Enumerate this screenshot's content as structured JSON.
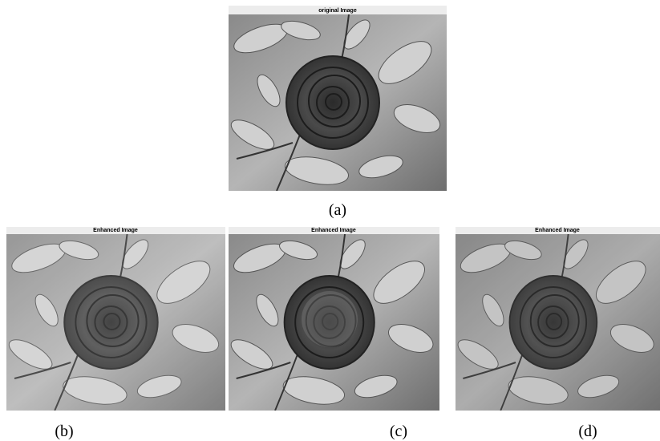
{
  "panels": [
    {
      "title": "original Image",
      "caption": "(a)"
    },
    {
      "title": "Enhanced Image",
      "caption": "(b)"
    },
    {
      "title": "Enhanced Image",
      "caption": "(c)"
    },
    {
      "title": "Enhanced Image",
      "caption": "(d)"
    }
  ]
}
